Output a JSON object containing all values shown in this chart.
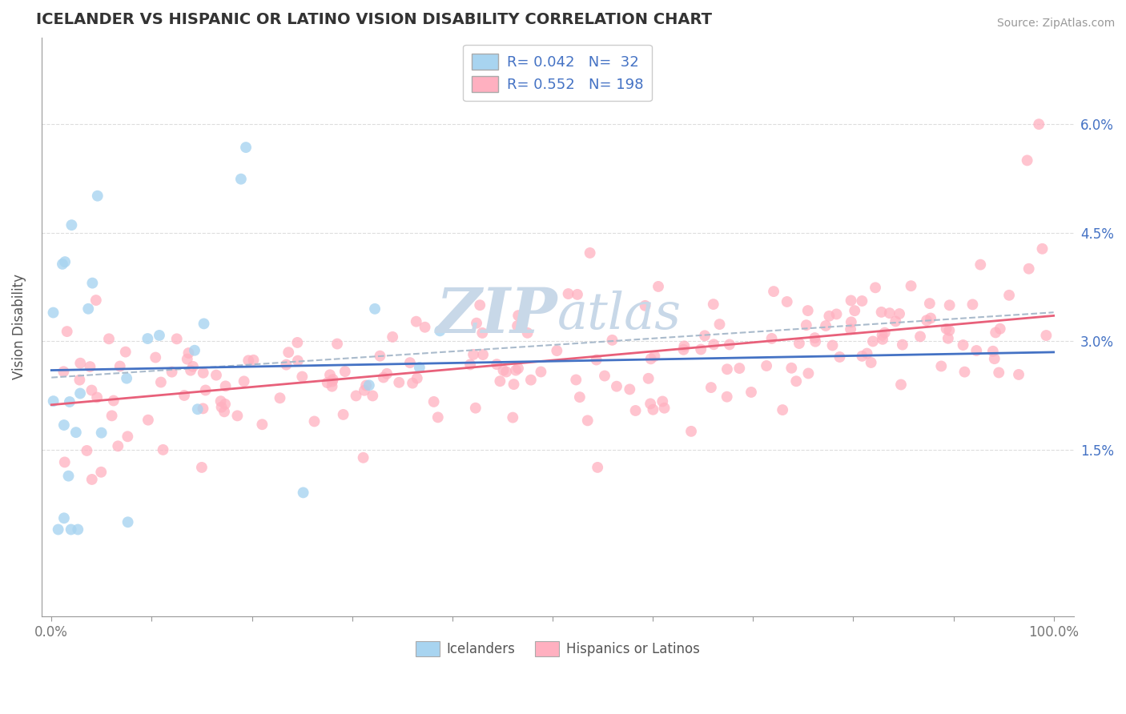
{
  "title": "ICELANDER VS HISPANIC OR LATINO VISION DISABILITY CORRELATION CHART",
  "source": "Source: ZipAtlas.com",
  "ylabel": "Vision Disability",
  "ytick_vals": [
    0.0,
    0.015,
    0.03,
    0.045,
    0.06
  ],
  "ytick_labels": [
    "",
    "1.5%",
    "3.0%",
    "4.5%",
    "6.0%"
  ],
  "xtick_vals": [
    0.0,
    0.1,
    0.2,
    0.3,
    0.4,
    0.5,
    0.6,
    0.7,
    0.8,
    0.9,
    1.0
  ],
  "xtick_labels": [
    "0.0%",
    "",
    "",
    "",
    "",
    "",
    "",
    "",
    "",
    "",
    "100.0%"
  ],
  "xlim": [
    -0.01,
    1.02
  ],
  "ylim": [
    -0.008,
    0.072
  ],
  "legend_r1": "R= 0.042",
  "legend_n1": "N=  32",
  "legend_r2": "R= 0.552",
  "legend_n2": "N= 198",
  "blue_color": "#A8D4F0",
  "pink_color": "#FFB0C0",
  "line_blue_color": "#4472C4",
  "line_pink_color": "#E8607A",
  "line_dashed_color": "#AABBCC",
  "watermark_color": "#C8D8E8",
  "grid_color": "#DDDDDD",
  "title_color": "#333333",
  "axis_color": "#999999",
  "tick_color": "#777777",
  "source_color": "#999999"
}
